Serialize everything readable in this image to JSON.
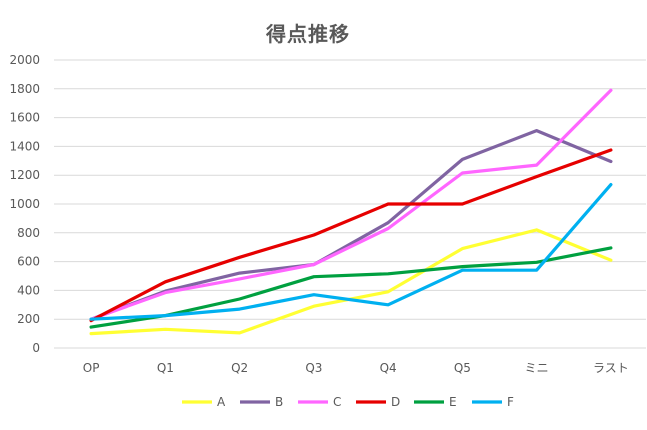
{
  "chart_data": {
    "type": "line",
    "title": "得点推移",
    "xlabel": "",
    "ylabel": "",
    "categories": [
      "OP",
      "Q1",
      "Q2",
      "Q3",
      "Q4",
      "Q5",
      "ミニ",
      "ラスト"
    ],
    "ylim": [
      0,
      2000
    ],
    "yticks": [
      0,
      200,
      400,
      600,
      800,
      1000,
      1200,
      1400,
      1600,
      1800,
      2000
    ],
    "grid": true,
    "legend_position": "bottom",
    "series": [
      {
        "name": "A",
        "color": "#FFFF33",
        "values": [
          100,
          130,
          105,
          290,
          390,
          690,
          820,
          610
        ]
      },
      {
        "name": "B",
        "color": "#8064A2",
        "values": [
          200,
          395,
          520,
          580,
          870,
          1310,
          1510,
          1295
        ]
      },
      {
        "name": "C",
        "color": "#FF66FF",
        "values": [
          200,
          385,
          480,
          580,
          830,
          1215,
          1270,
          1790
        ]
      },
      {
        "name": "D",
        "color": "#E60000",
        "values": [
          190,
          460,
          630,
          785,
          1000,
          1000,
          1190,
          1375
        ]
      },
      {
        "name": "E",
        "color": "#00A040",
        "values": [
          145,
          225,
          340,
          495,
          515,
          565,
          595,
          695
        ]
      },
      {
        "name": "F",
        "color": "#00B0F0",
        "values": [
          200,
          225,
          270,
          370,
          300,
          540,
          540,
          1135
        ]
      }
    ]
  }
}
